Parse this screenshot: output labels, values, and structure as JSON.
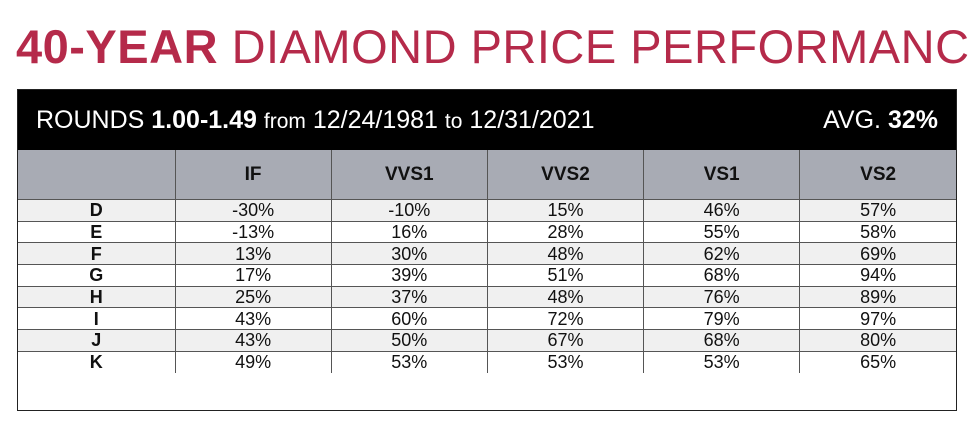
{
  "title": {
    "bold": "40-YEAR",
    "rest": "DIAMOND PRICE PERFORMANCE"
  },
  "accent_color": "#b52a4a",
  "banner": {
    "prefix": "ROUNDS",
    "carat": "1.00-1.49",
    "from_word": "from",
    "start_date": "12/24/1981",
    "to_word": "to",
    "end_date": "12/31/2021",
    "avg_label": "AVG.",
    "avg_value": "32%"
  },
  "chart_data": {
    "type": "table",
    "columns": [
      "",
      "IF",
      "VVS1",
      "VVS2",
      "VS1",
      "VS2"
    ],
    "rows": [
      {
        "label": "D",
        "values": [
          "-30%",
          "-10%",
          "15%",
          "46%",
          "57%"
        ]
      },
      {
        "label": "E",
        "values": [
          "-13%",
          "16%",
          "28%",
          "55%",
          "58%"
        ]
      },
      {
        "label": "F",
        "values": [
          "13%",
          "30%",
          "48%",
          "62%",
          "69%"
        ]
      },
      {
        "label": "G",
        "values": [
          "17%",
          "39%",
          "51%",
          "68%",
          "94%"
        ]
      },
      {
        "label": "H",
        "values": [
          "25%",
          "37%",
          "48%",
          "76%",
          "89%"
        ]
      },
      {
        "label": "I",
        "values": [
          "43%",
          "60%",
          "72%",
          "79%",
          "97%"
        ]
      },
      {
        "label": "J",
        "values": [
          "43%",
          "50%",
          "67%",
          "68%",
          "80%"
        ]
      },
      {
        "label": "K",
        "values": [
          "49%",
          "53%",
          "53%",
          "53%",
          "65%"
        ]
      }
    ]
  }
}
